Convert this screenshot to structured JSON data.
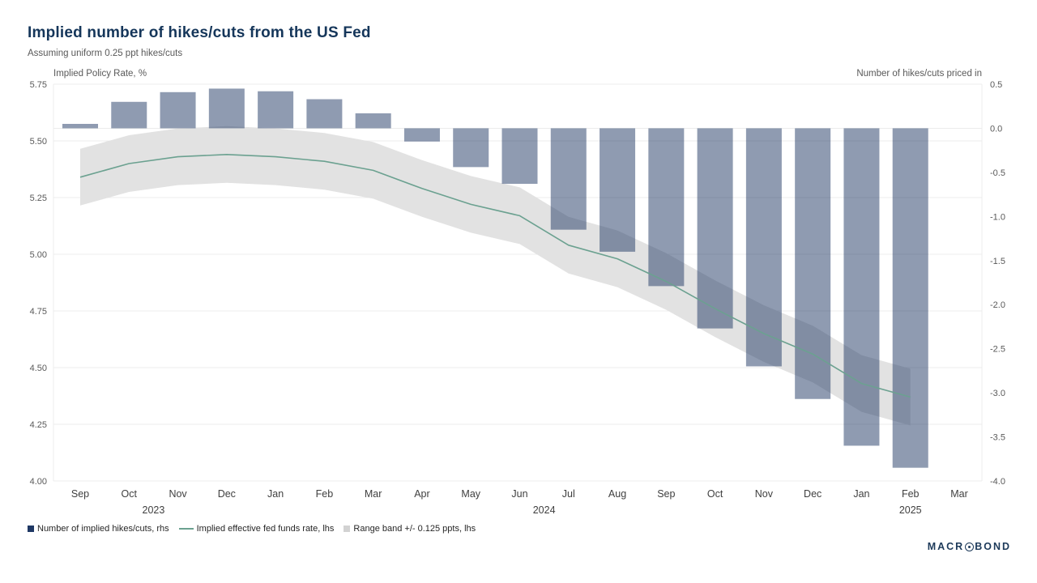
{
  "header": {
    "title": "Implied number of hikes/cuts from the US Fed",
    "subtitle": "Assuming uniform 0.25 ppt hikes/cuts"
  },
  "axes": {
    "left_label": "Implied Policy Rate, %",
    "right_label": "Number of hikes/cuts priced in"
  },
  "legend": [
    {
      "type": "square",
      "color": "#1f3864",
      "label": "Number of implied hikes/cuts, rhs"
    },
    {
      "type": "line",
      "color": "#6ba190",
      "label": "Implied effective fed funds rate, lhs"
    },
    {
      "type": "square",
      "color": "#d2d2d2",
      "label": "Range band +/- 0.125 ppts, lhs"
    }
  ],
  "branding": {
    "prefix": "MACR",
    "suffix": "BOND"
  },
  "chart_data": {
    "type": "bar",
    "title": "Implied number of hikes/cuts from the US Fed",
    "subtitle": "Assuming uniform 0.25 ppt hikes/cuts",
    "categories": [
      "Sep",
      "Oct",
      "Nov",
      "Dec",
      "Jan",
      "Feb",
      "Mar",
      "Apr",
      "May",
      "Jun",
      "Jul",
      "Aug",
      "Sep",
      "Oct",
      "Nov",
      "Dec",
      "Jan",
      "Feb",
      "Mar"
    ],
    "year_labels": [
      {
        "text": "2023",
        "pos": 1.5
      },
      {
        "text": "2024",
        "pos": 9.5
      },
      {
        "text": "2025",
        "pos": 17
      }
    ],
    "left_axis": {
      "label": "Implied Policy Rate, %",
      "min": 4.0,
      "max": 5.75,
      "ticks": [
        "5.75",
        "5.50",
        "5.25",
        "5.00",
        "4.75",
        "4.50",
        "4.25",
        "4.00"
      ]
    },
    "right_axis": {
      "label": "Number of hikes/cuts priced in",
      "min": -4.0,
      "max": 0.5,
      "ticks": [
        "0.5",
        "0.0",
        "-0.5",
        "-1.0",
        "-1.5",
        "-2.0",
        "-2.5",
        "-3.0",
        "-3.5",
        "-4.0"
      ]
    },
    "grid": "horizontal",
    "legend_position": "bottom-left",
    "series": [
      {
        "name": "Number of implied hikes/cuts, rhs",
        "type": "bar",
        "axis": "right",
        "color": "#1f3864",
        "opacity": 0.5,
        "values": [
          0.05,
          0.3,
          0.41,
          0.45,
          0.42,
          0.33,
          0.17,
          -0.15,
          -0.44,
          -0.63,
          -1.15,
          -1.4,
          -1.79,
          -2.27,
          -2.7,
          -3.07,
          -3.6,
          -3.85,
          null
        ]
      },
      {
        "name": "Implied effective fed funds rate, lhs",
        "type": "line",
        "axis": "left",
        "color": "#6ba190",
        "values": [
          5.34,
          5.4,
          5.43,
          5.44,
          5.43,
          5.41,
          5.37,
          5.29,
          5.22,
          5.17,
          5.04,
          4.98,
          4.88,
          4.76,
          4.65,
          4.56,
          4.43,
          4.37,
          null
        ]
      },
      {
        "name": "Range band +/- 0.125 ppts, lhs",
        "type": "band",
        "axis": "left",
        "color": "#e2e2e2",
        "half_width": 0.125
      }
    ]
  }
}
